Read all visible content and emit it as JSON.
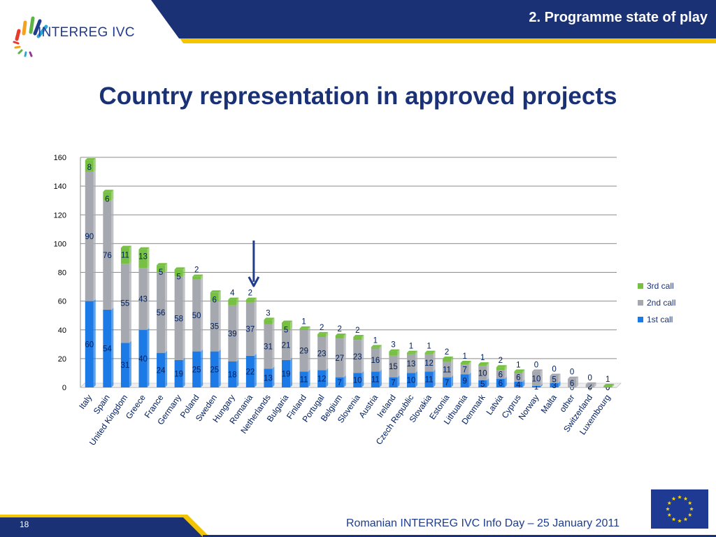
{
  "header": {
    "section_title": "2. Programme state of play",
    "logo_text": "INTERREG IVC",
    "colors": {
      "navy": "#1a3275",
      "yellow": "#f4c400"
    }
  },
  "page_title": "Country representation in approved projects",
  "chart_data": {
    "type": "bar",
    "stacked": true,
    "title": "",
    "xlabel": "",
    "ylabel": "",
    "ylim": [
      0,
      160
    ],
    "yticks": [
      0,
      20,
      40,
      60,
      80,
      100,
      120,
      140,
      160
    ],
    "grid": true,
    "legend_position": "right",
    "categories": [
      "Italy",
      "Spain",
      "United Kingdom",
      "Greece",
      "France",
      "Germany",
      "Poland",
      "Sweden",
      "Hungary",
      "Romania",
      "Netherlands",
      "Bulgaria",
      "Finland",
      "Portugal",
      "Belgium",
      "Slovenia",
      "Austria",
      "Ireland",
      "Czech Republic",
      "Slovakia",
      "Estonia",
      "Lithuania",
      "Denmark",
      "Latvia",
      "Cyprus",
      "Norway",
      "Malta",
      "other",
      "Switzerland",
      "Luxembourg"
    ],
    "series": [
      {
        "name": "1st call",
        "color": "#1b7ae6",
        "values": [
          60,
          54,
          31,
          40,
          24,
          19,
          25,
          25,
          18,
          22,
          13,
          19,
          11,
          12,
          7,
          10,
          11,
          7,
          10,
          11,
          7,
          9,
          5,
          6,
          4,
          1,
          3,
          0,
          0,
          0
        ]
      },
      {
        "name": "2nd call",
        "color": "#a6a8b0",
        "values": [
          90,
          76,
          55,
          43,
          56,
          58,
          50,
          35,
          39,
          37,
          31,
          21,
          29,
          23,
          27,
          23,
          16,
          15,
          13,
          12,
          11,
          7,
          10,
          6,
          6,
          10,
          5,
          6,
          2,
          0
        ]
      },
      {
        "name": "3rd call",
        "color": "#77c043",
        "values": [
          8,
          6,
          11,
          13,
          5,
          5,
          2,
          6,
          4,
          2,
          3,
          5,
          1,
          2,
          2,
          2,
          1,
          3,
          1,
          1,
          2,
          1,
          1,
          2,
          1,
          0,
          0,
          0,
          0,
          1
        ]
      }
    ],
    "annotation": {
      "type": "arrow",
      "category": "Romania",
      "color": "#1f3d8c"
    }
  },
  "footer": {
    "page_number": "18",
    "event_text": "Romanian INTERREG IVC Info Day – 25 January 2011"
  }
}
